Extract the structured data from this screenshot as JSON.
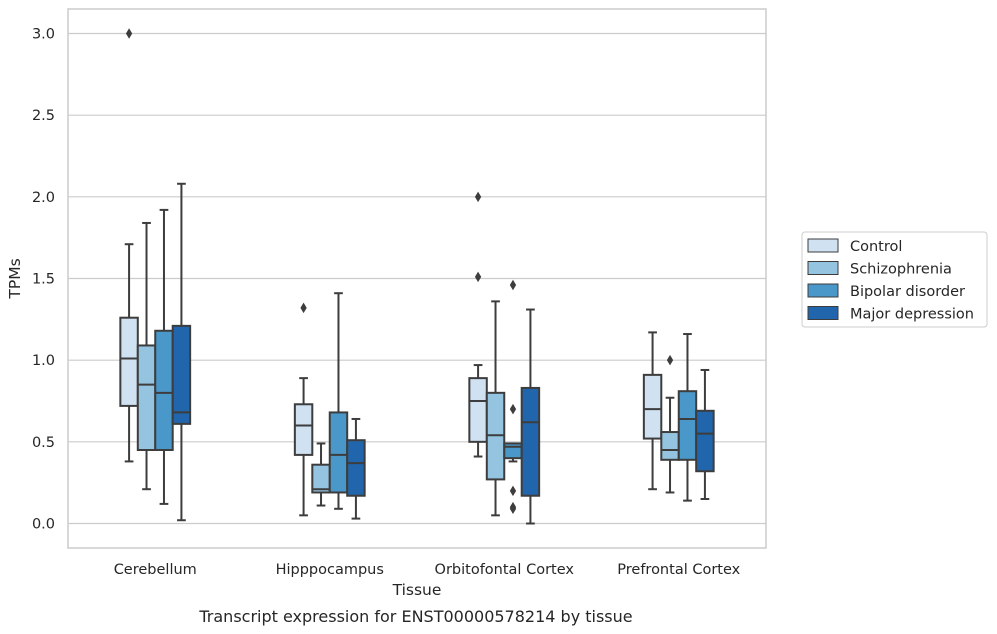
{
  "chart_data": {
    "type": "box",
    "title": "",
    "xlabel": "Tissue",
    "ylabel": "TPMs",
    "caption": "Transcript expression for ENST00000578214 by tissue",
    "ylim": [
      -0.15,
      3.15
    ],
    "yticks": [
      "0.0",
      "0.5",
      "1.0",
      "1.5",
      "2.0",
      "2.5",
      "3.0"
    ],
    "ytick_values": [
      0.0,
      0.5,
      1.0,
      1.5,
      2.0,
      2.5,
      3.0
    ],
    "grid": "horizontal",
    "legend_position": "right",
    "categories": [
      "Cerebellum",
      "Hipppocampus",
      "Orbitofontal Cortex",
      "Prefrontal Cortex"
    ],
    "series": [
      {
        "name": "Control",
        "color": "#d0e1f2",
        "boxes": [
          {
            "whislo": 0.38,
            "q1": 0.72,
            "med": 1.01,
            "q3": 1.26,
            "whishi": 1.71,
            "fliers": [
              3.0
            ]
          },
          {
            "whislo": 0.05,
            "q1": 0.42,
            "med": 0.6,
            "q3": 0.73,
            "whishi": 0.89,
            "fliers": [
              1.32
            ]
          },
          {
            "whislo": 0.41,
            "q1": 0.5,
            "med": 0.75,
            "q3": 0.89,
            "whishi": 0.97,
            "fliers": [
              1.51,
              2.0
            ]
          },
          {
            "whislo": 0.21,
            "q1": 0.52,
            "med": 0.7,
            "q3": 0.91,
            "whishi": 1.17,
            "fliers": []
          }
        ]
      },
      {
        "name": "Schizophrenia",
        "color": "#94c4df",
        "boxes": [
          {
            "whislo": 0.21,
            "q1": 0.45,
            "med": 0.85,
            "q3": 1.09,
            "whishi": 1.84,
            "fliers": []
          },
          {
            "whislo": 0.11,
            "q1": 0.19,
            "med": 0.21,
            "q3": 0.36,
            "whishi": 0.49,
            "fliers": []
          },
          {
            "whislo": 0.05,
            "q1": 0.27,
            "med": 0.54,
            "q3": 0.8,
            "whishi": 1.36,
            "fliers": []
          },
          {
            "whislo": 0.19,
            "q1": 0.39,
            "med": 0.45,
            "q3": 0.56,
            "whishi": 0.77,
            "fliers": [
              1.0
            ]
          }
        ]
      },
      {
        "name": "Bipolar disorder",
        "color": "#4a98c9",
        "boxes": [
          {
            "whislo": 0.12,
            "q1": 0.45,
            "med": 0.8,
            "q3": 1.18,
            "whishi": 1.92,
            "fliers": []
          },
          {
            "whislo": 0.09,
            "q1": 0.19,
            "med": 0.42,
            "q3": 0.68,
            "whishi": 1.41,
            "fliers": []
          },
          {
            "whislo": 0.38,
            "q1": 0.4,
            "med": 0.47,
            "q3": 0.49,
            "whishi": 0.49,
            "fliers": [
              1.46,
              0.7,
              0.2,
              0.1,
              0.09
            ]
          },
          {
            "whislo": 0.14,
            "q1": 0.39,
            "med": 0.64,
            "q3": 0.81,
            "whishi": 1.16,
            "fliers": []
          }
        ]
      },
      {
        "name": "Major depression",
        "color": "#2166ac",
        "boxes": [
          {
            "whislo": 0.02,
            "q1": 0.61,
            "med": 0.68,
            "q3": 1.21,
            "whishi": 2.08,
            "fliers": []
          },
          {
            "whislo": 0.03,
            "q1": 0.17,
            "med": 0.37,
            "q3": 0.51,
            "whishi": 0.64,
            "fliers": []
          },
          {
            "whislo": 0.0,
            "q1": 0.17,
            "med": 0.62,
            "q3": 0.83,
            "whishi": 1.31,
            "fliers": []
          },
          {
            "whislo": 0.15,
            "q1": 0.32,
            "med": 0.55,
            "q3": 0.69,
            "whishi": 0.94,
            "fliers": []
          }
        ]
      }
    ]
  }
}
